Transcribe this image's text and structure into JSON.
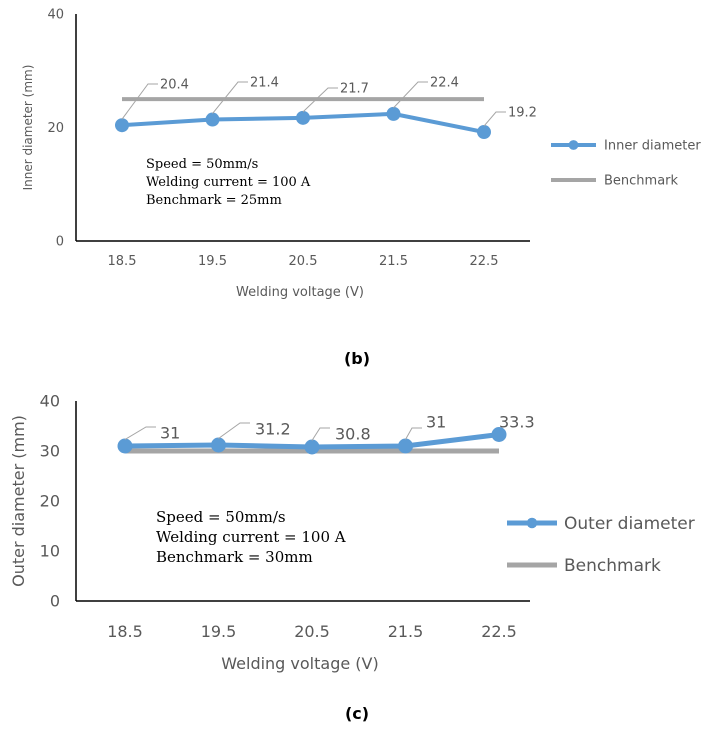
{
  "chart_data": [
    {
      "type": "line",
      "title": "",
      "xlabel": "Welding voltage (V)",
      "ylabel": "Inner diameter (mm)",
      "categories": [
        "18.5",
        "19.5",
        "20.5",
        "21.5",
        "22.5"
      ],
      "ylim": [
        0,
        40
      ],
      "y_ticks": [
        "0",
        "20",
        "40"
      ],
      "series": [
        {
          "name": "Inner diameter",
          "values": [
            20.4,
            21.4,
            21.7,
            22.4,
            19.2
          ],
          "labels": [
            "20.4",
            "21.4",
            "21.7",
            "22.4",
            "19.2"
          ],
          "color": "#5b9bd5"
        },
        {
          "name": "Benchmark",
          "values": [
            25,
            25,
            25,
            25,
            25
          ],
          "color": "#a5a5a5"
        }
      ],
      "annotation": [
        "Speed = 50mm/s",
        "Welding current = 100 A",
        "Benchmark = 25mm"
      ],
      "legend": "right",
      "caption": "(b)"
    },
    {
      "type": "line",
      "title": "",
      "xlabel": "Welding voltage (V)",
      "ylabel": "Outer diameter (mm)",
      "categories": [
        "18.5",
        "19.5",
        "20.5",
        "21.5",
        "22.5"
      ],
      "ylim": [
        0,
        40
      ],
      "y_ticks": [
        "0",
        "10",
        "20",
        "30",
        "40"
      ],
      "series": [
        {
          "name": "Outer diameter",
          "values": [
            31,
            31.2,
            30.8,
            31,
            33.3
          ],
          "labels": [
            "31",
            "31.2",
            "30.8",
            "31",
            "33.3"
          ],
          "color": "#5b9bd5"
        },
        {
          "name": "Benchmark",
          "values": [
            30,
            30,
            30,
            30,
            30
          ],
          "color": "#a5a5a5"
        }
      ],
      "annotation": [
        "Speed = 50mm/s",
        "Welding current = 100 A",
        "Benchmark = 30mm"
      ],
      "legend": "right",
      "caption": "(c)"
    }
  ]
}
